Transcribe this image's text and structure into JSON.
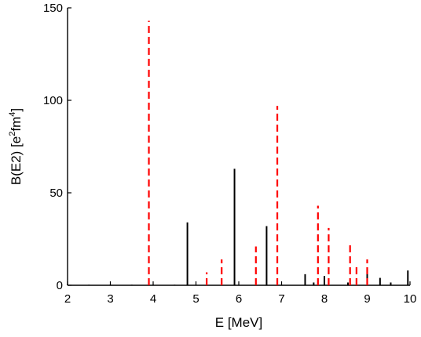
{
  "chart_data": {
    "type": "bar",
    "xlabel": "E [MeV]",
    "ylabel": {
      "main": "B(E2) [e",
      "sup1": "2",
      "mid": "fm",
      "sup2": "4",
      "end": "]"
    },
    "xlim": [
      2,
      10
    ],
    "ylim": [
      0,
      150
    ],
    "xticks": [
      2,
      3,
      4,
      5,
      6,
      7,
      8,
      9,
      10
    ],
    "yticks": [
      0,
      50,
      100,
      150
    ],
    "grid": false,
    "colors": {
      "black_series": "#000000",
      "red_series": "#ff0000"
    },
    "series": [
      {
        "style": "solid",
        "color": "#000000",
        "points": [
          {
            "x": 2.0,
            "y": 0.3
          },
          {
            "x": 2.5,
            "y": 0.3
          },
          {
            "x": 3.0,
            "y": 0.3
          },
          {
            "x": 3.5,
            "y": 0.3
          },
          {
            "x": 4.0,
            "y": 0.3
          },
          {
            "x": 4.5,
            "y": 0.3
          },
          {
            "x": 4.8,
            "y": 34
          },
          {
            "x": 5.9,
            "y": 63
          },
          {
            "x": 6.65,
            "y": 32
          },
          {
            "x": 7.55,
            "y": 6
          },
          {
            "x": 7.75,
            "y": 1.5
          },
          {
            "x": 8.0,
            "y": 5
          },
          {
            "x": 8.55,
            "y": 1.5
          },
          {
            "x": 9.0,
            "y": 8
          },
          {
            "x": 9.3,
            "y": 4
          },
          {
            "x": 9.55,
            "y": 1.5
          },
          {
            "x": 9.95,
            "y": 8
          }
        ]
      },
      {
        "style": "dashed",
        "color": "#ff0000",
        "points": [
          {
            "x": 3.9,
            "y": 143
          },
          {
            "x": 5.25,
            "y": 7
          },
          {
            "x": 5.6,
            "y": 14
          },
          {
            "x": 6.4,
            "y": 21
          },
          {
            "x": 6.9,
            "y": 97
          },
          {
            "x": 7.85,
            "y": 43
          },
          {
            "x": 8.1,
            "y": 31
          },
          {
            "x": 8.6,
            "y": 22
          },
          {
            "x": 8.75,
            "y": 11
          },
          {
            "x": 9.0,
            "y": 14
          }
        ]
      }
    ]
  }
}
